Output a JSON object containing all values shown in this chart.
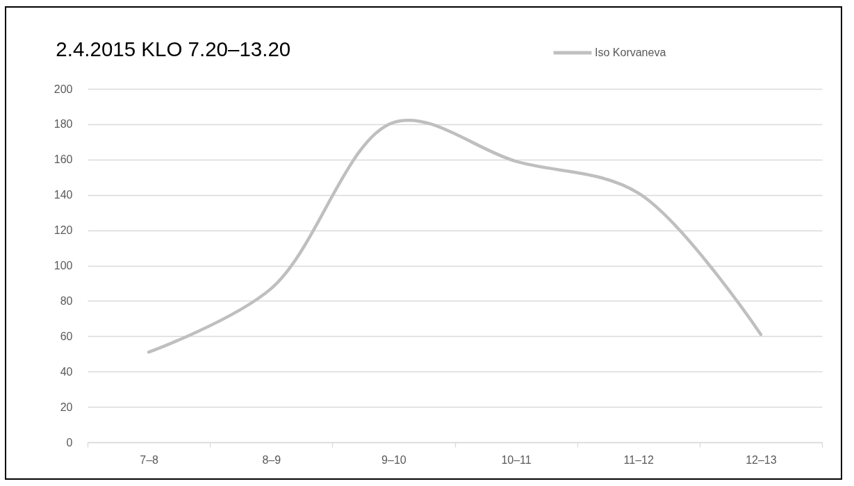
{
  "chart_data": {
    "type": "line",
    "title": "2.4.2015 KLO 7.20–13.20",
    "categories": [
      "7–8",
      "8–9",
      "9–10",
      "10–11",
      "11–12",
      "12–13"
    ],
    "series": [
      {
        "name": "Iso Korvaneva",
        "color": "#bfbfbf",
        "values": [
          51,
          87,
          181,
          159,
          141,
          61
        ]
      }
    ],
    "ylim": [
      0,
      200
    ],
    "yticks": [
      0,
      20,
      40,
      60,
      80,
      100,
      120,
      140,
      160,
      180,
      200
    ],
    "grid": "y",
    "legend": "top right"
  }
}
